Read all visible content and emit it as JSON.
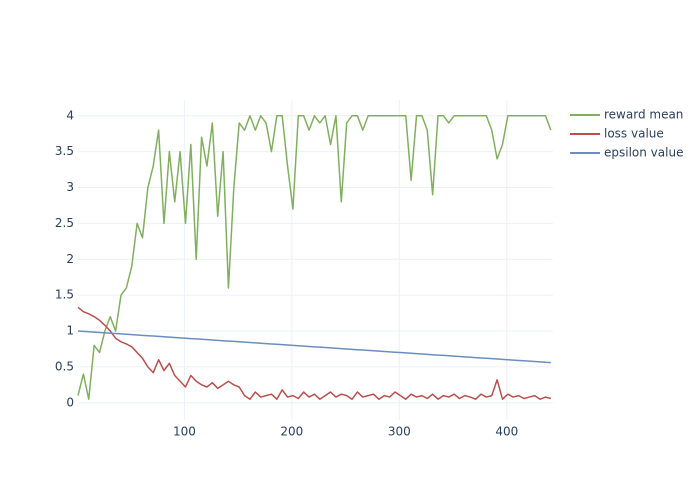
{
  "chart_data": {
    "type": "line",
    "x": [
      1,
      6,
      11,
      16,
      21,
      26,
      31,
      36,
      41,
      46,
      51,
      56,
      61,
      66,
      71,
      76,
      81,
      86,
      91,
      96,
      101,
      106,
      111,
      116,
      121,
      126,
      131,
      136,
      141,
      146,
      151,
      156,
      161,
      166,
      171,
      176,
      181,
      186,
      191,
      196,
      201,
      206,
      211,
      216,
      221,
      226,
      231,
      236,
      241,
      246,
      251,
      256,
      261,
      266,
      271,
      276,
      281,
      286,
      291,
      296,
      301,
      306,
      311,
      316,
      321,
      326,
      331,
      336,
      341,
      346,
      351,
      356,
      361,
      366,
      371,
      376,
      381,
      386,
      391,
      396,
      401,
      406,
      411,
      416,
      421,
      426,
      431,
      436,
      441
    ],
    "series": [
      {
        "name": "reward mean",
        "color": "#80b05e",
        "values": [
          0.1,
          0.4,
          0.05,
          0.8,
          0.7,
          1.0,
          1.2,
          1.0,
          1.5,
          1.6,
          1.9,
          2.5,
          2.3,
          3.0,
          3.3,
          3.8,
          2.5,
          3.5,
          2.8,
          3.5,
          2.5,
          3.6,
          2.0,
          3.7,
          3.3,
          3.9,
          2.6,
          3.5,
          1.6,
          3.0,
          3.9,
          3.8,
          4,
          3.8,
          4,
          3.9,
          3.5,
          4,
          4,
          3.3,
          2.7,
          4,
          4,
          3.8,
          4,
          3.9,
          4,
          3.6,
          4,
          2.8,
          3.9,
          4,
          4,
          3.8,
          4,
          4,
          4,
          4,
          4,
          4,
          4,
          4,
          3.1,
          4,
          4,
          3.8,
          2.9,
          4,
          4,
          3.9,
          4,
          4,
          4,
          4,
          4,
          4,
          4,
          3.8,
          3.4,
          3.6,
          4,
          4,
          4,
          4,
          4,
          4,
          4,
          4,
          3.8
        ]
      },
      {
        "name": "loss value",
        "color": "#b9504c",
        "values": [
          1.33,
          1.27,
          1.24,
          1.2,
          1.15,
          1.08,
          1.0,
          0.9,
          0.85,
          0.82,
          0.78,
          0.7,
          0.62,
          0.5,
          0.42,
          0.6,
          0.45,
          0.55,
          0.38,
          0.3,
          0.22,
          0.38,
          0.3,
          0.25,
          0.22,
          0.28,
          0.2,
          0.25,
          0.3,
          0.25,
          0.22,
          0.1,
          0.05,
          0.15,
          0.08,
          0.1,
          0.12,
          0.05,
          0.18,
          0.08,
          0.1,
          0.06,
          0.15,
          0.08,
          0.12,
          0.05,
          0.1,
          0.15,
          0.08,
          0.12,
          0.1,
          0.05,
          0.15,
          0.08,
          0.1,
          0.12,
          0.05,
          0.1,
          0.08,
          0.15,
          0.1,
          0.05,
          0.12,
          0.08,
          0.1,
          0.06,
          0.12,
          0.05,
          0.1,
          0.08,
          0.12,
          0.06,
          0.1,
          0.08,
          0.05,
          0.12,
          0.08,
          0.1,
          0.32,
          0.05,
          0.12,
          0.08,
          0.1,
          0.06,
          0.08,
          0.1,
          0.05,
          0.08,
          0.06
        ]
      },
      {
        "name": "epsilon value",
        "color": "#6c8ebf",
        "values": [
          1,
          0.995,
          0.99,
          0.985,
          0.98,
          0.975,
          0.97,
          0.965,
          0.96,
          0.955,
          0.95,
          0.945,
          0.94,
          0.935,
          0.93,
          0.925,
          0.92,
          0.915,
          0.91,
          0.905,
          0.9,
          0.895,
          0.89,
          0.885,
          0.88,
          0.875,
          0.87,
          0.865,
          0.86,
          0.855,
          0.85,
          0.845,
          0.84,
          0.835,
          0.83,
          0.825,
          0.82,
          0.815,
          0.81,
          0.805,
          0.8,
          0.795,
          0.79,
          0.785,
          0.78,
          0.775,
          0.77,
          0.765,
          0.76,
          0.755,
          0.75,
          0.745,
          0.74,
          0.735,
          0.73,
          0.725,
          0.72,
          0.715,
          0.71,
          0.705,
          0.7,
          0.695,
          0.69,
          0.685,
          0.68,
          0.675,
          0.67,
          0.665,
          0.66,
          0.655,
          0.65,
          0.645,
          0.64,
          0.635,
          0.63,
          0.625,
          0.62,
          0.615,
          0.61,
          0.605,
          0.6,
          0.595,
          0.59,
          0.585,
          0.58,
          0.575,
          0.57,
          0.565,
          0.56
        ]
      }
    ],
    "xlim": [
      1,
      443
    ],
    "xticks": [
      100,
      200,
      300,
      400
    ],
    "ylim": [
      -0.24,
      4.22
    ],
    "yticks": [
      0,
      0.5,
      1,
      1.5,
      2,
      2.5,
      3,
      3.5,
      4
    ],
    "grid": true,
    "legend": "right"
  }
}
